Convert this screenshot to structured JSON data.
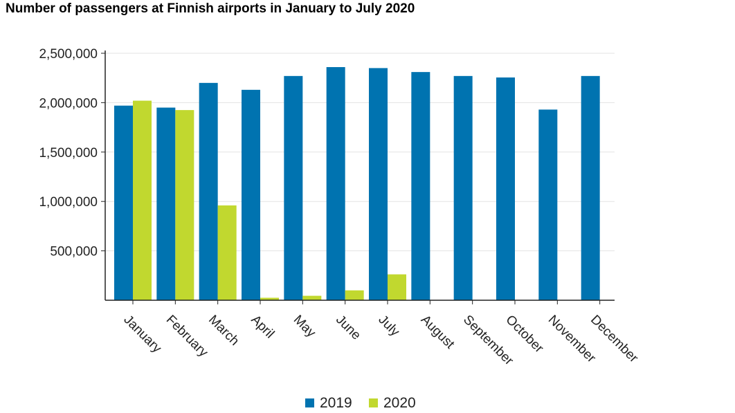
{
  "chart_data": {
    "type": "bar",
    "title": "Number of passengers at Finnish airports in January to July 2020",
    "categories": [
      "January",
      "February",
      "March",
      "April",
      "May",
      "June",
      "July",
      "August",
      "September",
      "October",
      "November",
      "December"
    ],
    "series": [
      {
        "name": "2019",
        "color": "#0073b0",
        "values": [
          1970000,
          1950000,
          2200000,
          2130000,
          2270000,
          2360000,
          2350000,
          2310000,
          2270000,
          2255000,
          1930000,
          2270000
        ]
      },
      {
        "name": "2020",
        "color": "#c1d82f",
        "values": [
          2020000,
          1925000,
          960000,
          25000,
          45000,
          100000,
          262000,
          null,
          null,
          null,
          null,
          null
        ]
      }
    ],
    "yticks": [
      "2,500,000",
      "2,000,000",
      "1,500,000",
      "1,000,000",
      "500,000"
    ],
    "ytick_values": [
      2500000,
      2000000,
      1500000,
      1000000,
      500000
    ],
    "ylim": [
      0,
      2500000
    ],
    "grid": true,
    "legend_position": "bottom"
  }
}
